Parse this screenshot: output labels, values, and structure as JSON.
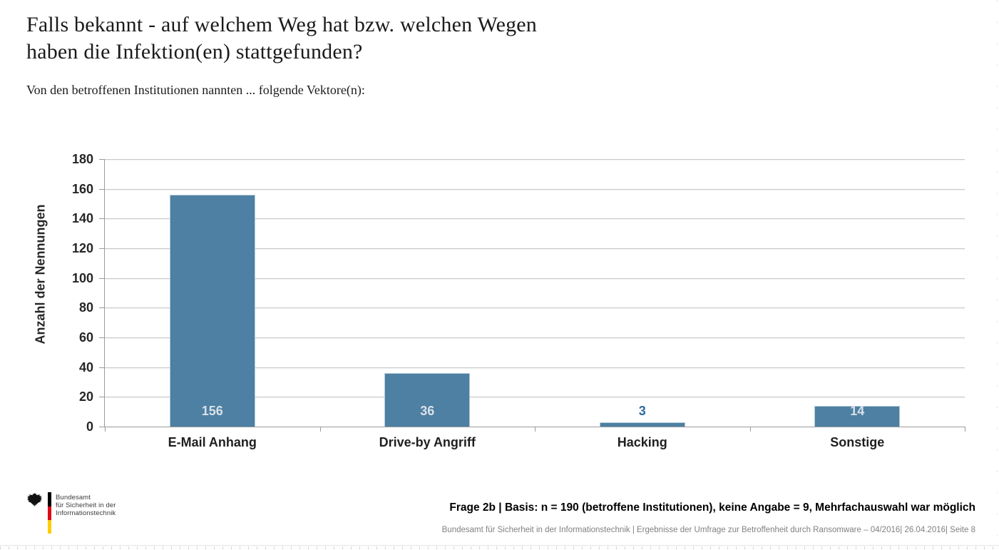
{
  "header": {
    "title_line1": "Falls bekannt - auf welchem Weg hat bzw. welchen Wegen",
    "title_line2": "haben die Infektion(en) stattgefunden?",
    "subtitle": "Von den betroffenen Institutionen nannten ... folgende Vektore(n):"
  },
  "chart_data": {
    "type": "bar",
    "title": "",
    "categories": [
      "E-Mail Anhang",
      "Drive-by Angriff",
      "Hacking",
      "Sonstige"
    ],
    "values": [
      156,
      36,
      3,
      14
    ],
    "xlabel": "",
    "ylabel": "Anzahl der Nennungen",
    "ylim": [
      0,
      180
    ],
    "yticks": [
      0,
      20,
      40,
      60,
      80,
      100,
      120,
      140,
      160,
      180
    ],
    "grid": true,
    "legend": false,
    "colors": {
      "bar_fill": "#4d80a2",
      "bar_border": "#b5cad9",
      "value_label_inside": "#dae1e9",
      "value_label_outside": "#2f6b9d",
      "gridline": "#c8c8c8",
      "axis": "#9b9b9b"
    }
  },
  "footer": {
    "logo": {
      "eagle_icon": "bundesadler-eagle",
      "flag_colors": [
        "#000000",
        "#dd0b16",
        "#ffcc00"
      ],
      "org_line1": "Bundesamt",
      "org_line2": "für Sicherheit in der",
      "org_line3": "Informationstechnik"
    },
    "note_bold": "Frage 2b | Basis: n = 190 (betroffene Institutionen), keine Angabe = 9, Mehrfachauswahl war möglich",
    "note_small": "Bundesamt für Sicherheit in der Informationstechnik | Ergebnisse der Umfrage zur Betroffenheit durch Ransomware – 04/2016| 26.04.2016| Seite 8"
  }
}
